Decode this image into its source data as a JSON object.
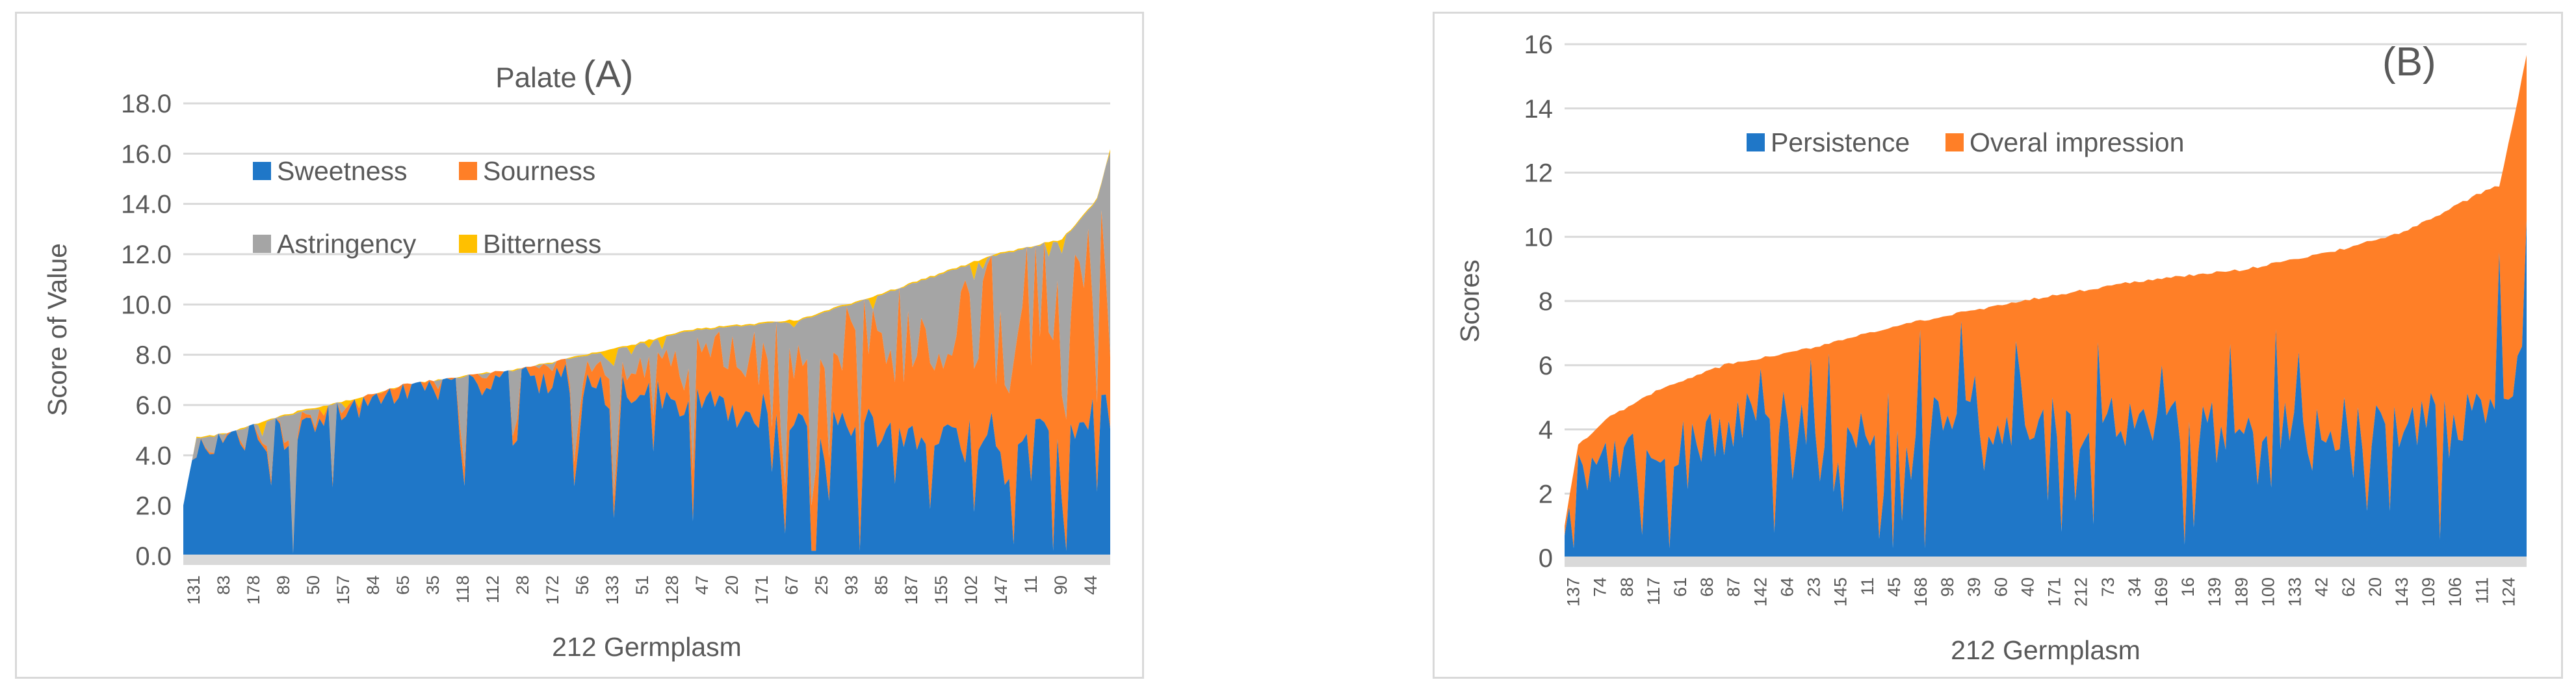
{
  "chart_data": [
    {
      "type": "area",
      "stacked": true,
      "title": "Palate",
      "panel_label": "(A)",
      "xlabel": "212 Germplasm",
      "ylabel": "Score of Value",
      "ylim": [
        0,
        18
      ],
      "yticks": [
        "0.0",
        "2.0",
        "4.0",
        "6.0",
        "8.0",
        "10.0",
        "12.0",
        "14.0",
        "16.0",
        "18.0"
      ],
      "grid": true,
      "legend_position": "top-left",
      "x_tick_labels": [
        "131",
        "83",
        "178",
        "89",
        "50",
        "157",
        "84",
        "65",
        "35",
        "118",
        "112",
        "28",
        "172",
        "56",
        "133",
        "51",
        "128",
        "47",
        "20",
        "171",
        "67",
        "25",
        "93",
        "85",
        "187",
        "155",
        "102",
        "147",
        "11",
        "90",
        "44"
      ],
      "series": [
        {
          "name": "Sweetness",
          "color": "#1f77c8"
        },
        {
          "name": "Sourness",
          "color": "#ff7f27"
        },
        {
          "name": "Astringency",
          "color": "#a5a5a5"
        },
        {
          "name": "Bitterness",
          "color": "#ffc000"
        }
      ],
      "total_profile": [
        [
          0,
          2.0
        ],
        [
          3,
          4.7
        ],
        [
          10,
          4.9
        ],
        [
          25,
          5.7
        ],
        [
          40,
          6.3
        ],
        [
          50,
          6.8
        ],
        [
          65,
          7.2
        ],
        [
          75,
          7.4
        ],
        [
          100,
          8.3
        ],
        [
          115,
          9.0
        ],
        [
          140,
          9.4
        ],
        [
          160,
          10.5
        ],
        [
          185,
          12.0
        ],
        [
          200,
          12.6
        ],
        [
          208,
          14.2
        ],
        [
          211,
          16.2
        ]
      ],
      "sweetness_profile": [
        [
          0,
          2.0
        ],
        [
          3,
          4.7
        ],
        [
          25,
          5.0
        ],
        [
          50,
          6.8
        ],
        [
          75,
          7.3
        ],
        [
          100,
          6.5
        ],
        [
          130,
          5.8
        ],
        [
          160,
          5.0
        ],
        [
          190,
          4.9
        ],
        [
          211,
          5.7
        ]
      ],
      "sourness_profile": [
        [
          0,
          0.0
        ],
        [
          100,
          1.0
        ],
        [
          140,
          3.5
        ],
        [
          180,
          5.8
        ],
        [
          200,
          6.6
        ],
        [
          211,
          7.0
        ]
      ]
    },
    {
      "type": "area",
      "stacked": true,
      "panel_label": "(B)",
      "xlabel": "212 Germplasm",
      "ylabel": "Scores",
      "ylim": [
        0,
        16
      ],
      "yticks": [
        "0",
        "2",
        "4",
        "6",
        "8",
        "10",
        "12",
        "14",
        "16"
      ],
      "grid": true,
      "legend_position": "top-left",
      "x_tick_labels": [
        "137",
        "74",
        "88",
        "117",
        "61",
        "68",
        "87",
        "142",
        "64",
        "23",
        "145",
        "11",
        "45",
        "168",
        "98",
        "39",
        "60",
        "40",
        "171",
        "212",
        "73",
        "34",
        "169",
        "16",
        "139",
        "189",
        "100",
        "133",
        "42",
        "62",
        "20",
        "143",
        "109",
        "106",
        "111",
        "124"
      ],
      "series": [
        {
          "name": "Persistence",
          "color": "#1f77c8"
        },
        {
          "name": "Overal impression",
          "color": "#ff7f27"
        }
      ],
      "total_profile": [
        [
          0,
          1.0
        ],
        [
          3,
          3.5
        ],
        [
          10,
          4.4
        ],
        [
          20,
          5.2
        ],
        [
          35,
          6.0
        ],
        [
          50,
          6.4
        ],
        [
          75,
          7.3
        ],
        [
          100,
          8.0
        ],
        [
          125,
          8.6
        ],
        [
          150,
          9.0
        ],
        [
          170,
          9.6
        ],
        [
          185,
          10.2
        ],
        [
          200,
          11.3
        ],
        [
          205,
          11.6
        ],
        [
          208,
          13.5
        ],
        [
          211,
          15.7
        ]
      ],
      "persistence_profile": [
        [
          0,
          0.3
        ],
        [
          3,
          3.0
        ],
        [
          10,
          3.0
        ],
        [
          40,
          4.3
        ],
        [
          100,
          4.2
        ],
        [
          150,
          4.0
        ],
        [
          200,
          4.4
        ],
        [
          211,
          6.1
        ]
      ]
    }
  ]
}
